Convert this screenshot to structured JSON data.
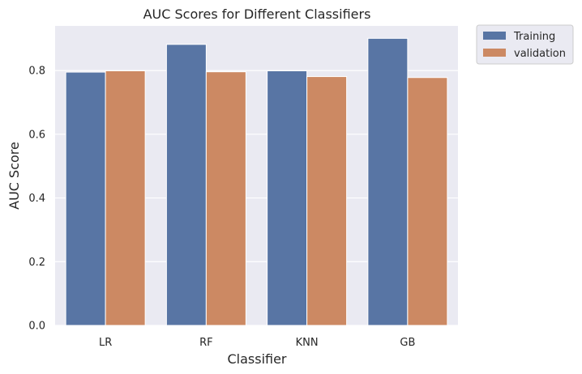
{
  "chart_data": {
    "type": "bar",
    "title": "AUC Scores for Different Classifiers",
    "xlabel": "Classifier",
    "ylabel": "AUC Score",
    "categories": [
      "LR",
      "RF",
      "KNN",
      "GB"
    ],
    "series": [
      {
        "name": "Training",
        "values": [
          0.795,
          0.882,
          0.799,
          0.901
        ],
        "color": "#5875a4"
      },
      {
        "name": "validation",
        "values": [
          0.799,
          0.796,
          0.781,
          0.778
        ],
        "color": "#cc8963"
      }
    ],
    "ylim": [
      0,
      0.94
    ],
    "yticks": [
      "0.0",
      "0.2",
      "0.4",
      "0.6",
      "0.8"
    ],
    "grid": true,
    "background": "#eaeaf2",
    "legend_position": "outside top-right"
  }
}
